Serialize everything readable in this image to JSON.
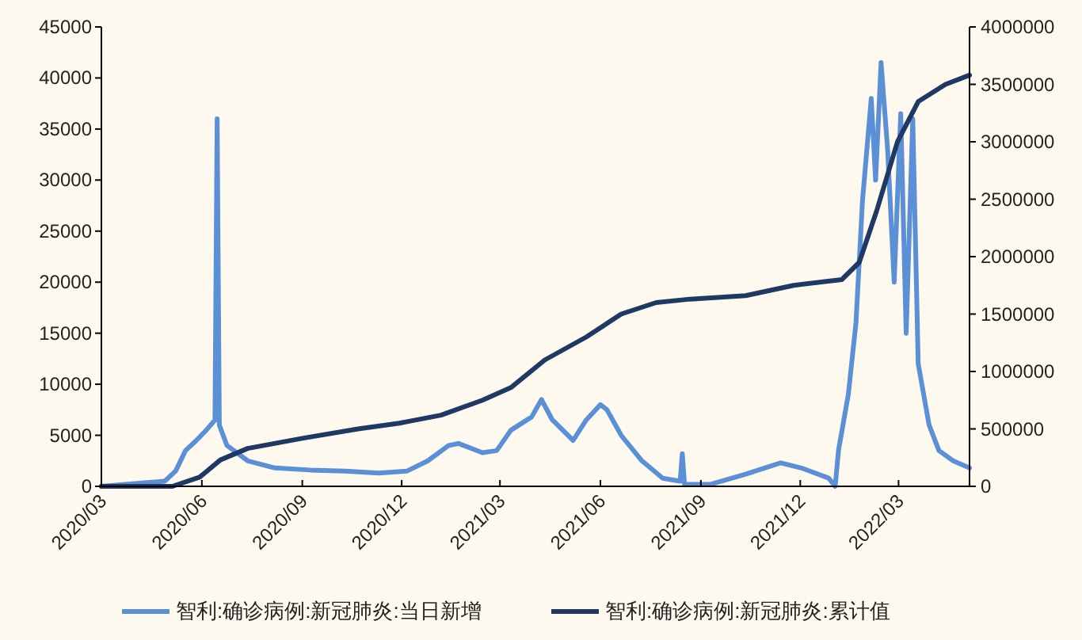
{
  "chart_data": {
    "type": "line",
    "xlim": [
      "2020-03-01",
      "2022-05-05"
    ],
    "xticks": [
      {
        "value": "2020-03-01",
        "label": "2020/03"
      },
      {
        "value": "2020-06-01",
        "label": "2020/06"
      },
      {
        "value": "2020-09-01",
        "label": "2020/09"
      },
      {
        "value": "2020-12-01",
        "label": "2020/12"
      },
      {
        "value": "2021-03-01",
        "label": "2021/03"
      },
      {
        "value": "2021-06-01",
        "label": "2021/06"
      },
      {
        "value": "2021-09-01",
        "label": "2021/09"
      },
      {
        "value": "2021-12-01",
        "label": "2021/12"
      },
      {
        "value": "2022-03-01",
        "label": "2022/03"
      }
    ],
    "ylim": [
      0,
      45000
    ],
    "yticks": [
      0,
      5000,
      10000,
      15000,
      20000,
      25000,
      30000,
      35000,
      40000,
      45000
    ],
    "y2lim": [
      0,
      4000000
    ],
    "y2ticks": [
      0,
      500000,
      1000000,
      1500000,
      2000000,
      2500000,
      3000000,
      3500000,
      4000000
    ],
    "legend": "bottom",
    "series": [
      {
        "name": "智利:确诊病例:新冠肺炎:当日新增",
        "color": "#5b8fd6",
        "x": [
          "2020-03-01",
          "2020-04-03",
          "2020-04-28",
          "2020-05-08",
          "2020-05-17",
          "2020-05-27",
          "2020-06-05",
          "2020-06-13",
          "2020-06-15",
          "2020-06-17",
          "2020-06-24",
          "2020-07-13",
          "2020-08-07",
          "2020-09-08",
          "2020-10-10",
          "2020-11-10",
          "2020-12-06",
          "2020-12-25",
          "2021-01-13",
          "2021-01-22",
          "2021-02-13",
          "2021-02-26",
          "2021-03-11",
          "2021-03-30",
          "2021-04-08",
          "2021-04-18",
          "2021-05-07",
          "2021-05-19",
          "2021-06-01",
          "2021-06-07",
          "2021-06-20",
          "2021-07-09",
          "2021-07-28",
          "2021-08-13",
          "2021-08-15",
          "2021-08-17",
          "2021-09-10",
          "2021-10-12",
          "2021-11-13",
          "2021-12-02",
          "2021-12-27",
          "2022-01-02",
          "2022-01-05",
          "2022-01-14",
          "2022-01-21",
          "2022-01-27",
          "2022-02-04",
          "2022-02-08",
          "2022-02-13",
          "2022-02-19",
          "2022-02-25",
          "2022-03-03",
          "2022-03-08",
          "2022-03-14",
          "2022-03-19",
          "2022-03-29",
          "2022-04-07",
          "2022-04-20",
          "2022-05-05"
        ],
        "values": [
          0,
          300,
          500,
          1500,
          3500,
          4500,
          5500,
          6500,
          36000,
          6000,
          4000,
          2500,
          1800,
          1600,
          1500,
          1300,
          1500,
          2500,
          4000,
          4200,
          3300,
          3500,
          5500,
          6800,
          8500,
          6500,
          4500,
          6500,
          8000,
          7500,
          5000,
          2500,
          800,
          500,
          3200,
          200,
          200,
          1200,
          2300,
          1800,
          800,
          0,
          3500,
          9000,
          16000,
          28000,
          38000,
          30000,
          41500,
          33000,
          20000,
          36500,
          15000,
          36000,
          12000,
          6000,
          3500,
          2500,
          1800
        ]
      },
      {
        "name": "智利:确诊病例:新冠肺炎:累计值",
        "color": "#1f3864",
        "axis": "y2",
        "x": [
          "2020-03-01",
          "2020-05-05",
          "2020-05-30",
          "2020-06-18",
          "2020-07-13",
          "2020-09-02",
          "2020-10-22",
          "2020-11-29",
          "2021-01-06",
          "2021-02-13",
          "2021-03-11",
          "2021-04-11",
          "2021-05-19",
          "2021-06-20",
          "2021-07-22",
          "2021-08-22",
          "2021-10-12",
          "2021-11-25",
          "2022-01-08",
          "2022-01-24",
          "2022-02-09",
          "2022-02-28",
          "2022-03-19",
          "2022-04-13",
          "2022-05-05"
        ],
        "values": [
          0,
          0,
          80000,
          230000,
          330000,
          420000,
          500000,
          550000,
          620000,
          750000,
          860000,
          1100000,
          1300000,
          1500000,
          1600000,
          1630000,
          1660000,
          1750000,
          1800000,
          1950000,
          2400000,
          3000000,
          3350000,
          3500000,
          3580000
        ]
      }
    ]
  }
}
